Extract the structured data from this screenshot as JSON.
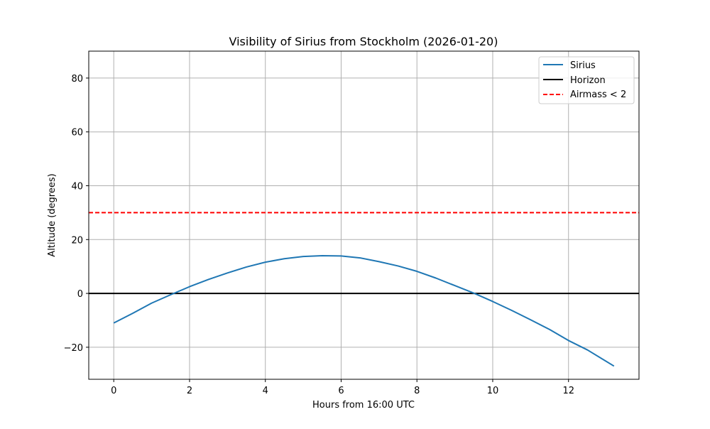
{
  "chart_data": {
    "type": "line",
    "title": "Visibility of Sirius from Stockholm (2026-01-20)",
    "xlabel": "Hours from 16:00 UTC",
    "ylabel": "Altitude (degrees)",
    "xlim": [
      -0.66,
      13.86
    ],
    "ylim": [
      -31.9,
      90
    ],
    "xticks": [
      0,
      2,
      4,
      6,
      8,
      10,
      12
    ],
    "yticks": [
      -20,
      0,
      20,
      40,
      60,
      80
    ],
    "xtick_labels": [
      "0",
      "2",
      "4",
      "6",
      "8",
      "10",
      "12"
    ],
    "ytick_labels": [
      "−20",
      "0",
      "20",
      "40",
      "60",
      "80"
    ],
    "grid": true,
    "legend_position": "upper right",
    "series": [
      {
        "name": "Sirius",
        "style": "solid",
        "color": "#1f77b4",
        "x": [
          0,
          0.5,
          1,
          1.5,
          2,
          2.5,
          3,
          3.5,
          4,
          4.5,
          5,
          5.5,
          6,
          6.5,
          7,
          7.5,
          8,
          8.5,
          9,
          9.5,
          10,
          10.5,
          11,
          11.5,
          12,
          12.5,
          13.2
        ],
        "y": [
          -11,
          -7.4,
          -3.6,
          -0.5,
          2.5,
          5.2,
          7.6,
          9.8,
          11.6,
          12.9,
          13.7,
          14.0,
          13.9,
          13.2,
          11.8,
          10.2,
          8.2,
          5.7,
          2.9,
          0.1,
          -3.0,
          -6.3,
          -9.8,
          -13.4,
          -17.5,
          -21.0,
          -27.0
        ]
      },
      {
        "name": "Horizon",
        "style": "solid",
        "color": "#000000",
        "y_constant": 0
      },
      {
        "name": "Airmass < 2",
        "style": "dashed",
        "color": "#ff0000",
        "y_constant": 30
      }
    ]
  }
}
